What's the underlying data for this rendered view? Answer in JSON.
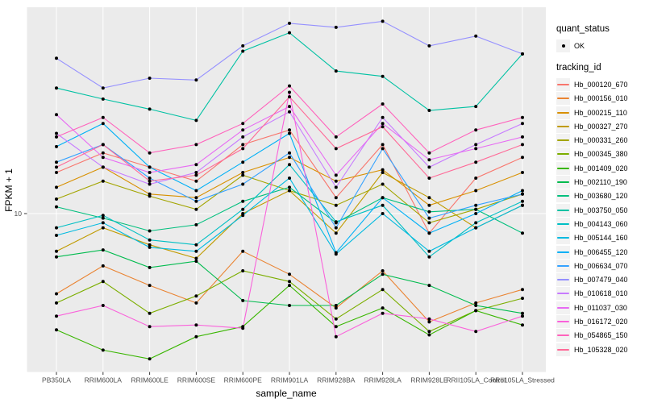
{
  "axes": {
    "x_title": "sample_name",
    "y_title": "FPKM + 1",
    "y_tick_label": "10"
  },
  "legend": {
    "quant_status": {
      "title": "quant_status",
      "items": [
        {
          "label": "OK",
          "marker": "point-icon",
          "color": "#000000"
        }
      ]
    },
    "tracking": {
      "title": "tracking_id"
    }
  },
  "style": {
    "panel_bg": "#EBEBEB",
    "grid_color": "#FFFFFF",
    "tick_color": "#333333",
    "tick_label_color": "#4D4D4D",
    "point_color": "#000000",
    "legend_key_bg": "#F2F2F2"
  },
  "chart_data": {
    "type": "line",
    "xlabel": "sample_name",
    "ylabel": "FPKM + 1",
    "yscale": "log10",
    "y_major_tick": 10,
    "ylim_approx": [
      1.6,
      105
    ],
    "grid": "major-on",
    "legend_position": "right",
    "marker": "black point on every vertex (quant_status = OK)",
    "categories": [
      "PB350LA",
      "RRIM600LA",
      "RRIM600LE",
      "RRIM600SE",
      "RRIM600PE",
      "RRIM901LA",
      "RRIM928BA",
      "RRIM928LA",
      "RRIM928LE",
      "RRII105LA_Control",
      "RRII105LA_Stressed"
    ],
    "series": [
      {
        "name": "Hb_000120_670",
        "color": "#F8766D",
        "values": [
          16,
          20,
          17,
          14.5,
          22,
          26,
          12,
          22,
          8,
          15,
          19
        ]
      },
      {
        "name": "Hb_000156_010",
        "color": "#EA8331",
        "values": [
          4.0,
          5.5,
          4.4,
          3.6,
          6.5,
          5.0,
          3.4,
          5.2,
          2.9,
          3.6,
          4.2
        ]
      },
      {
        "name": "Hb_000215_110",
        "color": "#D89000",
        "values": [
          13.5,
          17,
          12.5,
          12,
          16,
          19,
          14.5,
          16.5,
          11,
          13,
          16
        ]
      },
      {
        "name": "Hb_000327_270",
        "color": "#C09B00",
        "values": [
          6.5,
          8.5,
          7,
          6,
          10,
          13,
          8,
          16,
          12,
          8.5,
          11
        ]
      },
      {
        "name": "Hb_000331_260",
        "color": "#A3A500",
        "values": [
          11.8,
          14.5,
          12.2,
          10.5,
          15.5,
          13,
          11,
          14,
          9,
          10.5,
          12.5
        ]
      },
      {
        "name": "Hb_000345_380",
        "color": "#7CAE00",
        "values": [
          3.6,
          4.6,
          3.2,
          3.9,
          5.2,
          4.6,
          3.0,
          4.2,
          2.6,
          3.3,
          3.8
        ]
      },
      {
        "name": "Hb_001409_020",
        "color": "#39B600",
        "values": [
          2.65,
          2.1,
          1.9,
          2.45,
          2.75,
          4.4,
          2.75,
          3.4,
          2.5,
          3.3,
          2.8
        ]
      },
      {
        "name": "Hb_002110_190",
        "color": "#00BB4E",
        "values": [
          6.1,
          6.6,
          5.4,
          5.8,
          3.7,
          3.5,
          3.5,
          5.0,
          4.4,
          3.5,
          3.2
        ]
      },
      {
        "name": "Hb_003680_120",
        "color": "#00BF7D",
        "values": [
          10.8,
          9.5,
          8.2,
          8.8,
          11.5,
          13.5,
          9.0,
          12.0,
          10.2,
          10.5,
          8.0
        ]
      },
      {
        "name": "Hb_003750_050",
        "color": "#00C1A3",
        "values": [
          42,
          37,
          33,
          29,
          64,
          79,
          51,
          48,
          32.5,
          34,
          62
        ]
      },
      {
        "name": "Hb_004143_060",
        "color": "#00BFC4",
        "values": [
          8.5,
          9.8,
          7.4,
          7.0,
          10.5,
          17.5,
          9.1,
          11,
          6.1,
          9,
          11.5
        ]
      },
      {
        "name": "Hb_005144_160",
        "color": "#00BAE0",
        "values": [
          7.8,
          9.0,
          6.8,
          6.5,
          9.8,
          15,
          6.3,
          10,
          6.5,
          8.5,
          11
        ]
      },
      {
        "name": "Hb_006455_120",
        "color": "#00B0F6",
        "values": [
          21.5,
          28,
          17,
          13,
          18,
          25,
          6.4,
          12,
          8,
          10,
          13
        ]
      },
      {
        "name": "Hb_006634_070",
        "color": "#35A2FF",
        "values": [
          18,
          22,
          15,
          11.5,
          14,
          20,
          8.5,
          21,
          9.5,
          11,
          12.5
        ]
      },
      {
        "name": "Hb_007479_040",
        "color": "#9590FF",
        "values": [
          59,
          42,
          47,
          46,
          68,
          88,
          84,
          90,
          68,
          76,
          62
        ]
      },
      {
        "name": "Hb_010618_010",
        "color": "#C77CFF",
        "values": [
          25,
          17,
          14,
          16,
          24,
          32,
          13.5,
          30,
          17,
          22,
          28
        ]
      },
      {
        "name": "Hb_011037_030",
        "color": "#E76BF3",
        "values": [
          31,
          19,
          16,
          17.5,
          26,
          34,
          15.5,
          28,
          18.5,
          21,
          24
        ]
      },
      {
        "name": "Hb_016172_020",
        "color": "#FA62DB",
        "values": [
          3.1,
          3.5,
          2.75,
          2.8,
          2.7,
          40,
          2.45,
          3.2,
          3.0,
          2.6,
          3.1
        ]
      },
      {
        "name": "Hb_054865_150",
        "color": "#FF62BC",
        "values": [
          24,
          30,
          20,
          22,
          28,
          43,
          24,
          35,
          20,
          26,
          30
        ]
      },
      {
        "name": "Hb_105328_020",
        "color": "#FF6A98",
        "values": [
          17,
          22,
          14.5,
          15.5,
          21,
          38,
          21,
          27,
          15,
          18,
          22
        ]
      }
    ]
  }
}
